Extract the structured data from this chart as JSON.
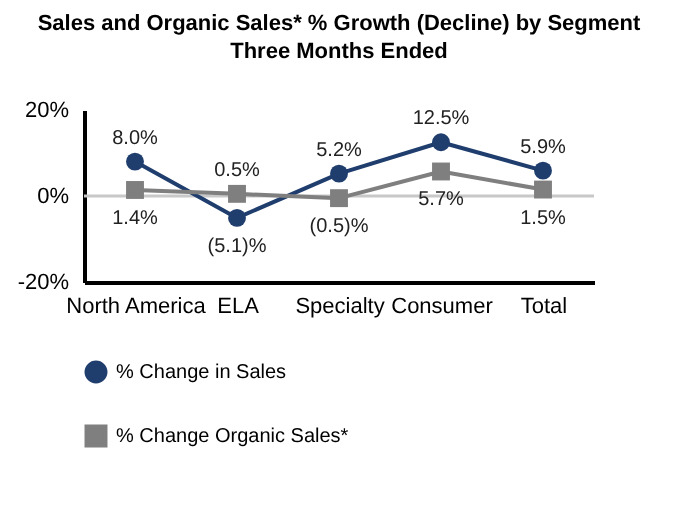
{
  "chart_data": {
    "type": "line",
    "title": "Sales and Organic Sales* % Growth (Decline) by Segment",
    "subtitle": "Three Months Ended",
    "categories": [
      "North America",
      "ELA",
      "Specialty",
      "Consumer",
      "Total"
    ],
    "series": [
      {
        "name": "% Change in Sales",
        "color": "#1f3e6e",
        "marker": "circle",
        "values": [
          8.0,
          -5.1,
          5.2,
          12.5,
          5.9
        ],
        "value_labels": [
          "8.0%",
          "(5.1)%",
          "5.2%",
          "12.5%",
          "5.9%"
        ]
      },
      {
        "name": "% Change Organic Sales*",
        "color": "#7f7f7f",
        "marker": "square",
        "values": [
          1.4,
          0.5,
          -0.5,
          5.7,
          1.5
        ],
        "value_labels": [
          "1.4%",
          "0.5%",
          "(0.5)%",
          "5.7%",
          "1.5%"
        ]
      }
    ],
    "ylim": [
      -20,
      20
    ],
    "yticks": [
      {
        "value": 20,
        "label": "20%"
      },
      {
        "value": 0,
        "label": "0%"
      },
      {
        "value": -20,
        "label": "-20%"
      }
    ],
    "ref_lines": [
      {
        "axis": "y",
        "value": 0,
        "color": "#c8c8c8"
      }
    ],
    "grid": false,
    "legend": "bottom",
    "line_style": "solid"
  }
}
